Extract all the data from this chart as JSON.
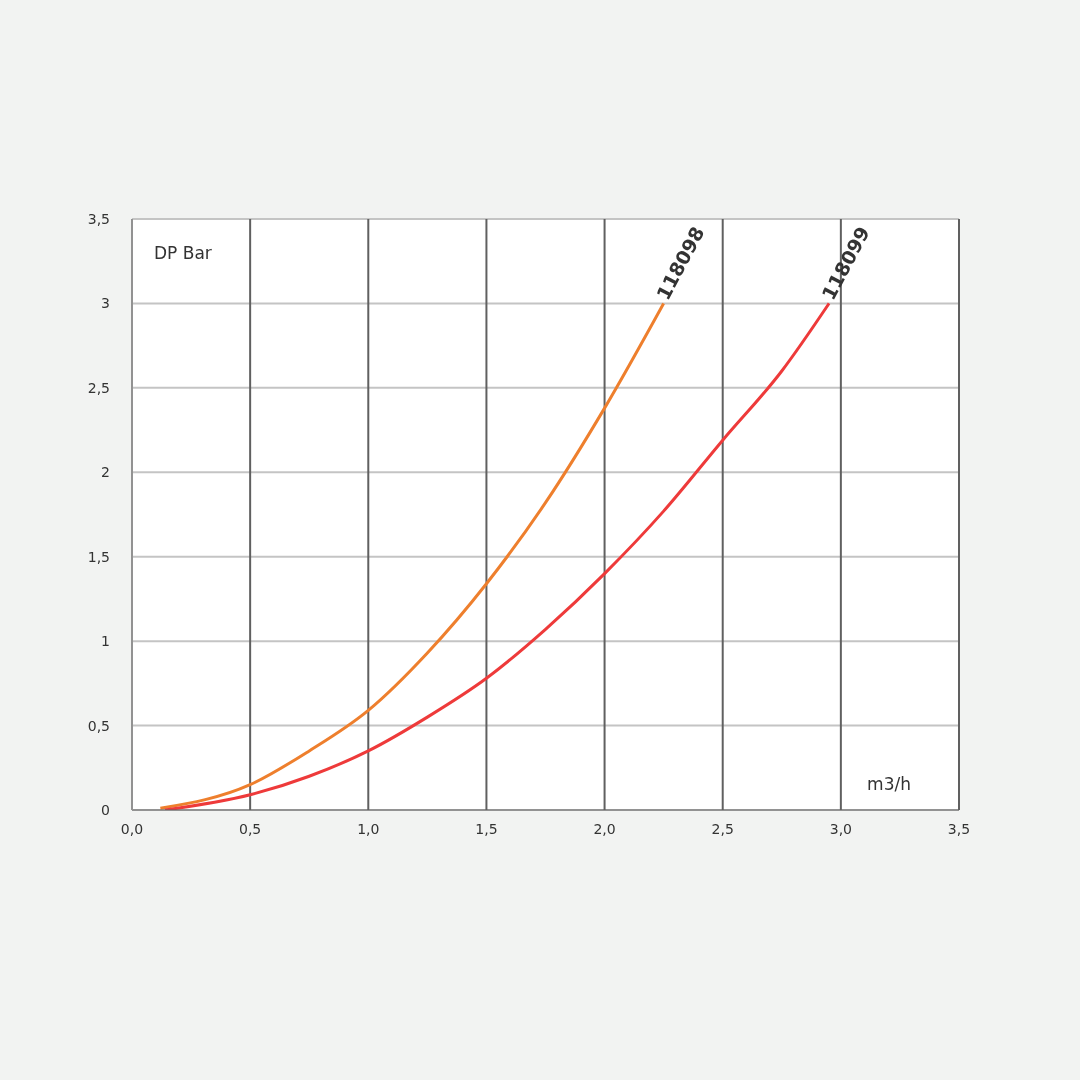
{
  "chart_data": {
    "type": "line",
    "xlabel": "m3/h",
    "ylabel": "DP Bar",
    "xlim": [
      0,
      3.5
    ],
    "ylim": [
      0,
      3.5
    ],
    "xticks": [
      {
        "value": 0,
        "label": "0,0"
      },
      {
        "value": 0.5,
        "label": "0,5"
      },
      {
        "value": 1,
        "label": "1,0"
      },
      {
        "value": 1.5,
        "label": "1,5"
      },
      {
        "value": 2,
        "label": "2,0"
      },
      {
        "value": 2.5,
        "label": "2,5"
      },
      {
        "value": 3,
        "label": "3,0"
      },
      {
        "value": 3.5,
        "label": "3,5"
      }
    ],
    "yticks": [
      0,
      {
        "value": 0.5,
        "label": "0,5"
      },
      1,
      {
        "value": 1.5,
        "label": "1,5"
      },
      2,
      {
        "value": 2.5,
        "label": "2,5"
      },
      3,
      {
        "value": 3.5,
        "label": "3,5"
      }
    ],
    "grid": true,
    "marker": "none",
    "line_style": "solid",
    "series": [
      {
        "name": "118098",
        "color": "#ee7f2d",
        "x": [
          0.12,
          0.5,
          0.75,
          1,
          1.25,
          1.5,
          1.75,
          2,
          2.25
        ],
        "values": [
          0.01,
          0.15,
          0.35,
          0.59,
          0.93,
          1.34,
          1.82,
          2.38,
          3.0
        ]
      },
      {
        "name": "118099",
        "color": "#ee3a3a",
        "x": [
          0.14,
          0.5,
          0.75,
          1,
          1.25,
          1.5,
          1.75,
          2,
          2.25,
          2.5,
          2.75,
          2.95
        ],
        "values": [
          0.0,
          0.09,
          0.2,
          0.35,
          0.55,
          0.78,
          1.07,
          1.4,
          1.77,
          2.19,
          2.6,
          3.0
        ]
      }
    ]
  }
}
